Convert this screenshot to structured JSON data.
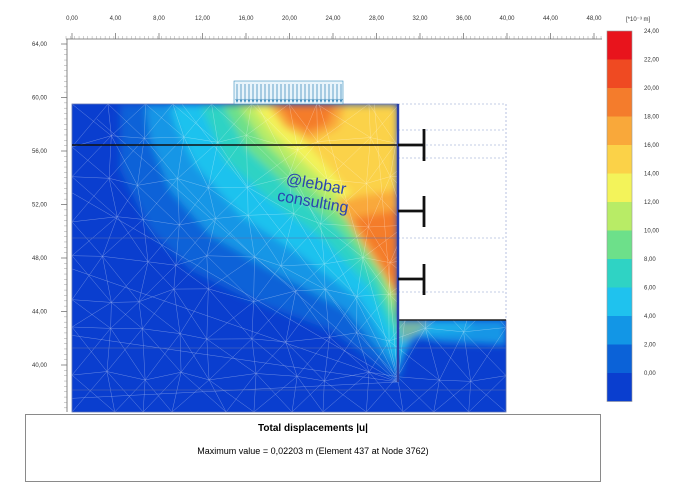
{
  "top_axis": {
    "ticks": [
      "0,00",
      "4,00",
      "8,00",
      "12,00",
      "16,00",
      "20,00",
      "24,00",
      "28,00",
      "32,00",
      "36,00",
      "40,00",
      "44,00",
      "48,00"
    ]
  },
  "left_axis": {
    "ticks": [
      "64,00",
      "60,00",
      "56,00",
      "52,00",
      "48,00",
      "44,00",
      "40,00"
    ]
  },
  "legend": {
    "unit": "[*10⁻³ m]",
    "ticks": [
      "24,00",
      "22,00",
      "20,00",
      "18,00",
      "16,00",
      "14,00",
      "12,00",
      "10,00",
      "8,00",
      "6,00",
      "4,00",
      "2,00",
      "0,00"
    ],
    "colors": [
      "#e8141c",
      "#ef4a22",
      "#f47c2c",
      "#f9a83a",
      "#fbd248",
      "#f3f35a",
      "#b8ec66",
      "#6de08a",
      "#2fd3c4",
      "#1fc2ee",
      "#1296e6",
      "#0b62d8",
      "#0a3ecf"
    ]
  },
  "caption": {
    "title": "Total displacements |u|",
    "subtitle": "Maximum value = 0,02203 m (Element 437 at Node 3762)"
  },
  "watermark": {
    "line1": "@lebbar",
    "line2": "consulting"
  }
}
